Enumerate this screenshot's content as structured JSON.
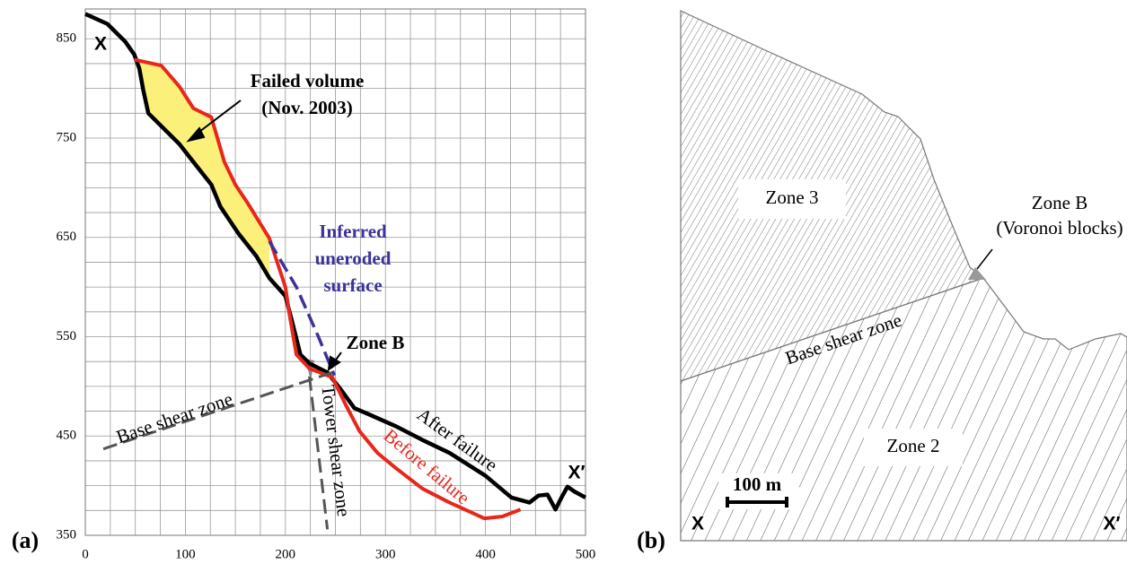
{
  "chart_data": {
    "type": "line",
    "panel_label": "(a)",
    "xlim": [
      0,
      500
    ],
    "ylim": [
      350,
      880
    ],
    "xticks": [
      0,
      100,
      200,
      300,
      400,
      500
    ],
    "yticks": [
      350,
      450,
      550,
      650,
      750,
      850
    ],
    "xgrid": [
      0,
      25,
      50,
      75,
      100,
      125,
      150,
      175,
      200,
      225,
      250,
      275,
      300,
      325,
      350,
      375,
      400,
      425,
      450,
      475,
      500
    ],
    "ygrid": [
      350,
      375,
      400,
      425,
      450,
      475,
      500,
      525,
      550,
      575,
      600,
      625,
      650,
      675,
      700,
      725,
      750,
      775,
      800,
      825,
      850,
      875
    ],
    "grid": true,
    "fill_color": "#fbf07a",
    "series": [
      {
        "name": "After failure",
        "color": "#000000",
        "x": [
          0,
          22,
          40,
          49,
          54,
          58,
          63,
          76,
          94,
          108,
          126,
          135,
          153,
          171,
          184,
          200,
          207,
          215,
          224,
          242,
          256,
          269,
          283,
          310,
          337,
          364,
          400,
          426,
          444,
          453,
          462,
          470,
          476,
          482,
          489,
          500
        ],
        "values": [
          875,
          865,
          847,
          834,
          820,
          798,
          775,
          762,
          744,
          726,
          703,
          681,
          654,
          631,
          609,
          591,
          564,
          532,
          523,
          514,
          496,
          478,
          472,
          460,
          446,
          433,
          410,
          388,
          383,
          390,
          391,
          376,
          388,
          399,
          394,
          388
        ]
      },
      {
        "name": "Before failure",
        "color": "#e8271c",
        "x": [
          49,
          58,
          76,
          94,
          108,
          126,
          139,
          150,
          162,
          184,
          200,
          204,
          211,
          224,
          247,
          260,
          274,
          292,
          310,
          337,
          364,
          399,
          417,
          435
        ],
        "values": [
          829,
          827,
          823,
          802,
          780,
          771,
          726,
          703,
          685,
          649,
          600,
          573,
          532,
          518,
          509,
          482,
          455,
          433,
          418,
          397,
          383,
          367,
          369,
          376
        ]
      },
      {
        "name": "Inferred uneroded surface",
        "color": "#3b3399",
        "dashed": true,
        "x": [
          184,
          211,
          233,
          249
        ],
        "values": [
          646,
          600,
          550,
          511
        ]
      },
      {
        "name": "Base shear zone",
        "color": "#555555",
        "dashed": true,
        "x": [
          18,
          247
        ],
        "values": [
          437,
          514
        ]
      },
      {
        "name": "Tower shear zone",
        "color": "#555555",
        "dashed": true,
        "x": [
          224,
          242
        ],
        "values": [
          510,
          356
        ]
      }
    ],
    "annotations": [
      "X",
      "X′",
      "Failed volume",
      "(Nov. 2003)",
      "Zone B"
    ]
  },
  "panel_b": {
    "panel_label": "(b)",
    "zone_3": "Zone 3",
    "zone_2": "Zone 2",
    "zone_b": "Zone B",
    "zone_b_note": "(Voronoi blocks)",
    "base_shear_zone": "Base shear zone",
    "scale_bar": "100 m",
    "left_end": "X",
    "right_end": "X′"
  }
}
